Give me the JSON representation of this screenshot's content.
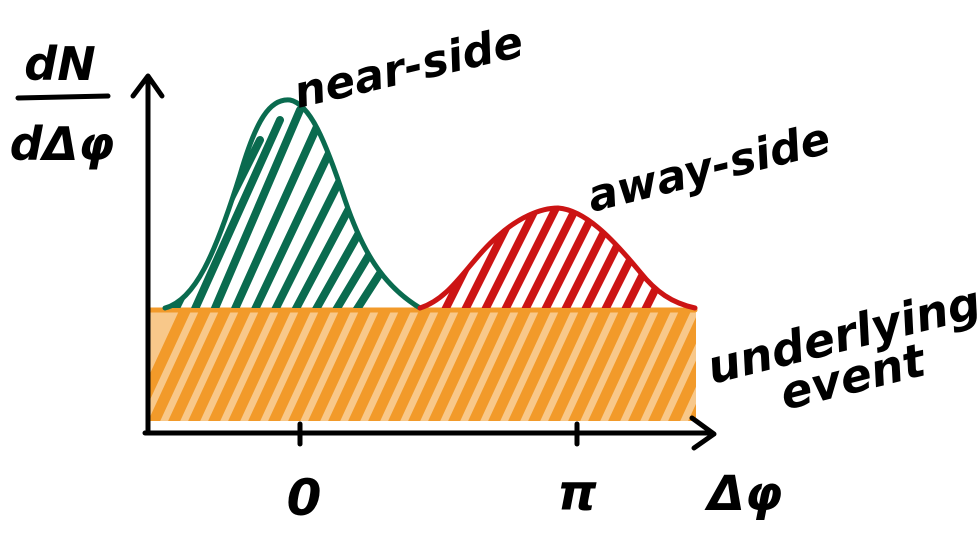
{
  "yaxis": {
    "numerator": "dN",
    "denominator": "dΔφ"
  },
  "xaxis": {
    "label": "Δφ",
    "ticks": [
      "0",
      "π"
    ]
  },
  "labels": {
    "near_side": "near-side",
    "away_side": "away-side",
    "underlying_line1": "underlying",
    "underlying_line2": "event"
  },
  "colors": {
    "near_side": "#0a6b4f",
    "away_side": "#cc1414",
    "underlying": "#f29a2a",
    "ink": "#000000"
  }
}
